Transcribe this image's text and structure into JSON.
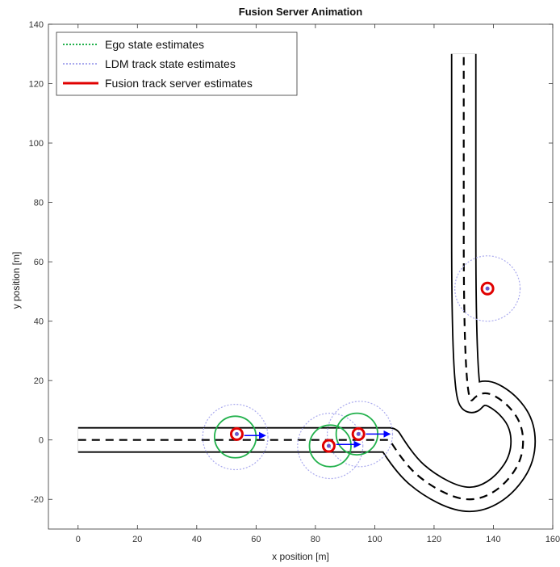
{
  "chart_data": {
    "type": "scenario-animation",
    "title": "Fusion Server Animation",
    "xlabel": "x position [m]",
    "ylabel": "y position [m]",
    "xlim": [
      -10,
      160
    ],
    "ylim": [
      -30,
      140
    ],
    "xticks": [
      0,
      20,
      40,
      60,
      80,
      100,
      120,
      140,
      160
    ],
    "yticks": [
      -20,
      0,
      20,
      40,
      60,
      80,
      100,
      120,
      140
    ],
    "grid": false,
    "legend": {
      "placement": "top-left",
      "entries": [
        {
          "label": "Ego state estimates",
          "color": "#22b14c",
          "style": "dotted"
        },
        {
          "label": "LDM track state estimates",
          "color": "#aaaaee",
          "style": "dotted"
        },
        {
          "label": "Fusion track server estimates",
          "color": "#e00000",
          "style": "solid"
        }
      ]
    },
    "road": {
      "half_width": 4,
      "straight": {
        "x_start": 0,
        "x_end": 105,
        "y": 0
      },
      "curve": [
        [
          105,
          0
        ],
        [
          110,
          -8
        ],
        [
          118,
          -15
        ],
        [
          128,
          -20
        ],
        [
          136,
          -20
        ],
        [
          144,
          -15
        ],
        [
          150,
          -6
        ],
        [
          150,
          5
        ],
        [
          144,
          13
        ],
        [
          136,
          17
        ],
        [
          130,
          10
        ],
        [
          130,
          130
        ]
      ]
    },
    "ego_estimates": [
      {
        "x": 53,
        "y": 1,
        "r": 7
      },
      {
        "x": 85,
        "y": -2,
        "r": 7
      },
      {
        "x": 94,
        "y": 2,
        "r": 7
      }
    ],
    "ldm_tracks": [
      {
        "x": 53,
        "y": 1,
        "r": 11
      },
      {
        "x": 85,
        "y": -2,
        "r": 11
      },
      {
        "x": 95,
        "y": 2,
        "r": 11
      },
      {
        "x": 138,
        "y": 51,
        "r": 11
      }
    ],
    "fusion_tracks": [
      {
        "x": 53.5,
        "y": 2
      },
      {
        "x": 84.5,
        "y": -2
      },
      {
        "x": 94.5,
        "y": 2
      },
      {
        "x": 138,
        "y": 51
      }
    ],
    "velocity_vectors": [
      {
        "x": 56,
        "y": 1.5,
        "dx": 7,
        "dy": 0
      },
      {
        "x": 87,
        "y": -1.5,
        "dx": 8,
        "dy": 0
      },
      {
        "x": 97,
        "y": 2,
        "dx": 8,
        "dy": 0
      }
    ]
  },
  "colors": {
    "ego": "#22b14c",
    "ldm": "#aaaaee",
    "fusion": "#e00000",
    "vector": "#0000ff",
    "road": "#000000"
  }
}
